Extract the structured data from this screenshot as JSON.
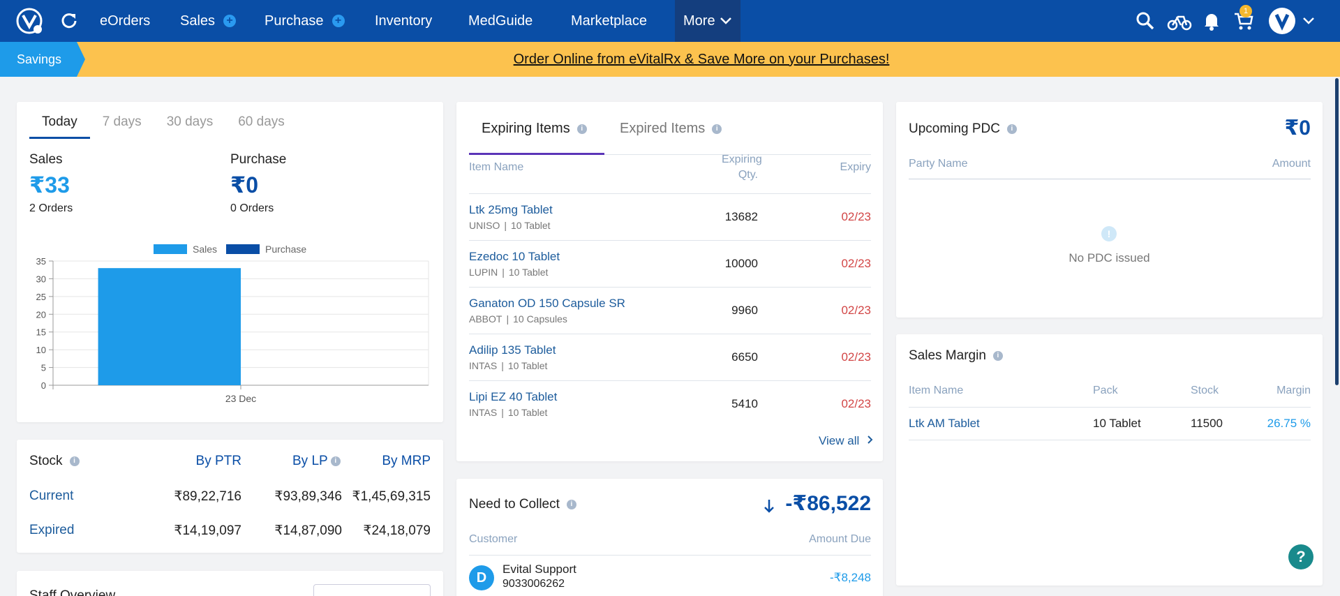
{
  "nav": {
    "items": [
      "eOrders",
      "Sales",
      "Purchase",
      "Inventory",
      "MedGuide",
      "Marketplace",
      "More"
    ],
    "cart_count": "1"
  },
  "banner": {
    "tag": "Savings",
    "text": "Order Online from eVitalRx & Save More on your Purchases!"
  },
  "summary": {
    "tabs": [
      "Today",
      "7 days",
      "30 days",
      "60 days"
    ],
    "sales_label": "Sales",
    "sales_value": "₹33",
    "sales_orders": "2 Orders",
    "purchase_label": "Purchase",
    "purchase_value": "₹0",
    "purchase_orders": "0 Orders"
  },
  "chart_data": {
    "type": "bar",
    "categories": [
      "23 Dec"
    ],
    "series": [
      {
        "name": "Sales",
        "values": [
          33
        ],
        "color": "#1e9be9"
      },
      {
        "name": "Purchase",
        "values": [
          0
        ],
        "color": "#0a4ea6"
      }
    ],
    "yticks": [
      0,
      5,
      10,
      15,
      20,
      25,
      30,
      35
    ],
    "ylim": [
      0,
      35
    ],
    "legend": "top"
  },
  "stock": {
    "title": "Stock",
    "headers": [
      "By PTR",
      "By LP",
      "By MRP"
    ],
    "rows": [
      {
        "label": "Current",
        "values": [
          "₹89,22,716",
          "₹93,89,346",
          "₹1,45,69,315"
        ]
      },
      {
        "label": "Expired",
        "values": [
          "₹14,19,097",
          "₹14,87,090",
          "₹24,18,079"
        ]
      }
    ],
    "next_title": "Staff Overview"
  },
  "expiring": {
    "tabs": [
      "Expiring Items",
      "Expired Items"
    ],
    "headers": {
      "name": "Item Name",
      "qty_line1": "Expiring",
      "qty_line2": "Qty.",
      "expiry": "Expiry"
    },
    "rows": [
      {
        "name": "Ltk 25mg Tablet",
        "company": "UNISO",
        "pack": "10 Tablet",
        "qty": "13682",
        "expiry": "02/23"
      },
      {
        "name": "Ezedoc 10 Tablet",
        "company": "LUPIN",
        "pack": "10 Tablet",
        "qty": "10000",
        "expiry": "02/23"
      },
      {
        "name": "Ganaton OD 150 Capsule SR",
        "company": "ABBOT",
        "pack": "10 Capsules",
        "qty": "9960",
        "expiry": "02/23"
      },
      {
        "name": "Adilip 135 Tablet",
        "company": "INTAS",
        "pack": "10 Tablet",
        "qty": "6650",
        "expiry": "02/23"
      },
      {
        "name": "Lipi EZ 40 Tablet",
        "company": "INTAS",
        "pack": "10 Tablet",
        "qty": "5410",
        "expiry": "02/23"
      }
    ],
    "sep": "|",
    "view_all": "View all"
  },
  "collect": {
    "title": "Need to Collect",
    "total": "-₹86,522",
    "headers": [
      "Customer",
      "Amount Due"
    ],
    "rows": [
      {
        "initial": "D",
        "name": "Evital Support",
        "phone": "9033006262",
        "amount": "-₹8,248"
      }
    ]
  },
  "pdc": {
    "title": "Upcoming PDC",
    "total": "₹0",
    "headers": [
      "Party Name",
      "Amount"
    ],
    "empty": "No PDC issued"
  },
  "margin": {
    "title": "Sales Margin",
    "headers": [
      "Item Name",
      "Pack",
      "Stock",
      "Margin"
    ],
    "rows": [
      {
        "name": "Ltk AM Tablet",
        "pack": "10 Tablet",
        "stock": "11500",
        "margin": "26.75 %"
      }
    ]
  }
}
